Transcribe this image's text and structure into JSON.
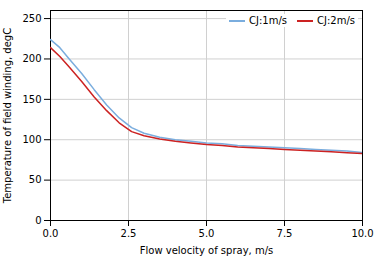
{
  "chart_data": {
    "type": "line",
    "xlabel": "Flow velocity of spray, m/s",
    "ylabel": "Temperature of field winding, degC",
    "x": [
      0.0,
      0.3,
      0.6,
      1.0,
      1.4,
      1.8,
      2.2,
      2.6,
      3.0,
      3.5,
      4.0,
      4.5,
      5.0,
      5.5,
      6.0,
      6.5,
      7.0,
      7.5,
      8.0,
      8.5,
      9.0,
      9.5,
      10.0
    ],
    "series": [
      {
        "name": "CJ:1m/s",
        "color": "#7aadde",
        "values": [
          224,
          214,
          200,
          182,
          162,
          143,
          127,
          115,
          108,
          103,
          100,
          98,
          96,
          95,
          93,
          92,
          91,
          90,
          89,
          88,
          87,
          86,
          84
        ]
      },
      {
        "name": "CJ:2m/s",
        "color": "#cc2222",
        "values": [
          214,
          203,
          190,
          172,
          153,
          136,
          121,
          110,
          105,
          101,
          98,
          96,
          94,
          93,
          91,
          90,
          89,
          88,
          87,
          86,
          85,
          84,
          83
        ]
      }
    ],
    "xlim": [
      0,
      10
    ],
    "ylim": [
      0,
      260
    ],
    "xticks": [
      {
        "value": 0,
        "label": "0.0"
      },
      2.5,
      {
        "value": 5,
        "label": "5.0"
      },
      7.5,
      {
        "value": 10,
        "label": "10.0"
      }
    ],
    "yticks": [
      0,
      50,
      100,
      150,
      200,
      250
    ],
    "grid": true,
    "legend": "upper right"
  }
}
